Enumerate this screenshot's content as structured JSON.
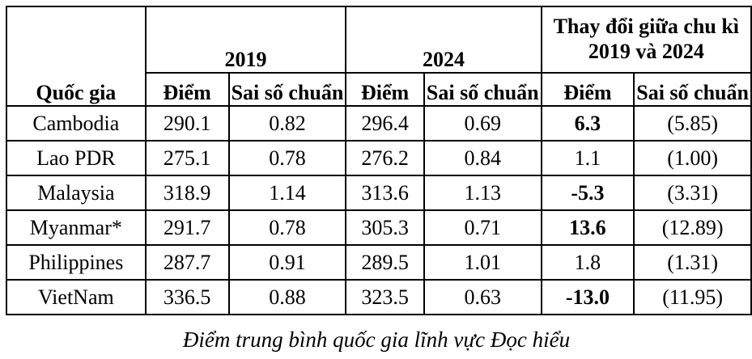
{
  "table": {
    "header": {
      "country_label": "Quốc gia",
      "group_2019": "2019",
      "group_2024": "2024",
      "group_change": "Thay đổi giữa chu kì 2019 và 2024",
      "score_label": "Điểm",
      "se_label": "Sai số chuẩn"
    },
    "rows": [
      {
        "country": "Cambodia",
        "score_2019": "290.1",
        "se_2019": "0.82",
        "score_2024": "296.4",
        "se_2024": "0.69",
        "change_score": "6.3",
        "change_bold": true,
        "change_se": "(5.85)"
      },
      {
        "country": "Lao PDR",
        "score_2019": "275.1",
        "se_2019": "0.78",
        "score_2024": "276.2",
        "se_2024": "0.84",
        "change_score": "1.1",
        "change_bold": false,
        "change_se": "(1.00)"
      },
      {
        "country": "Malaysia",
        "score_2019": "318.9",
        "se_2019": "1.14",
        "score_2024": "313.6",
        "se_2024": "1.13",
        "change_score": "-5.3",
        "change_bold": true,
        "change_se": "(3.31)"
      },
      {
        "country": "Myanmar*",
        "score_2019": "291.7",
        "se_2019": "0.78",
        "score_2024": "305.3",
        "se_2024": "0.71",
        "change_score": "13.6",
        "change_bold": true,
        "change_se": "(12.89)"
      },
      {
        "country": "Philippines",
        "score_2019": "287.7",
        "se_2019": "0.91",
        "score_2024": "289.5",
        "se_2024": "1.01",
        "change_score": "1.8",
        "change_bold": false,
        "change_se": "(1.31)"
      },
      {
        "country": "VietNam",
        "score_2019": "336.5",
        "se_2019": "0.88",
        "score_2024": "323.5",
        "se_2024": "0.63",
        "change_score": "-13.0",
        "change_bold": true,
        "change_se": "(11.95)"
      }
    ]
  },
  "caption": "Điểm trung bình quốc gia lĩnh vực Đọc hiểu",
  "colors": {
    "border": "#000000",
    "text": "#000000",
    "background": "#ffffff"
  }
}
